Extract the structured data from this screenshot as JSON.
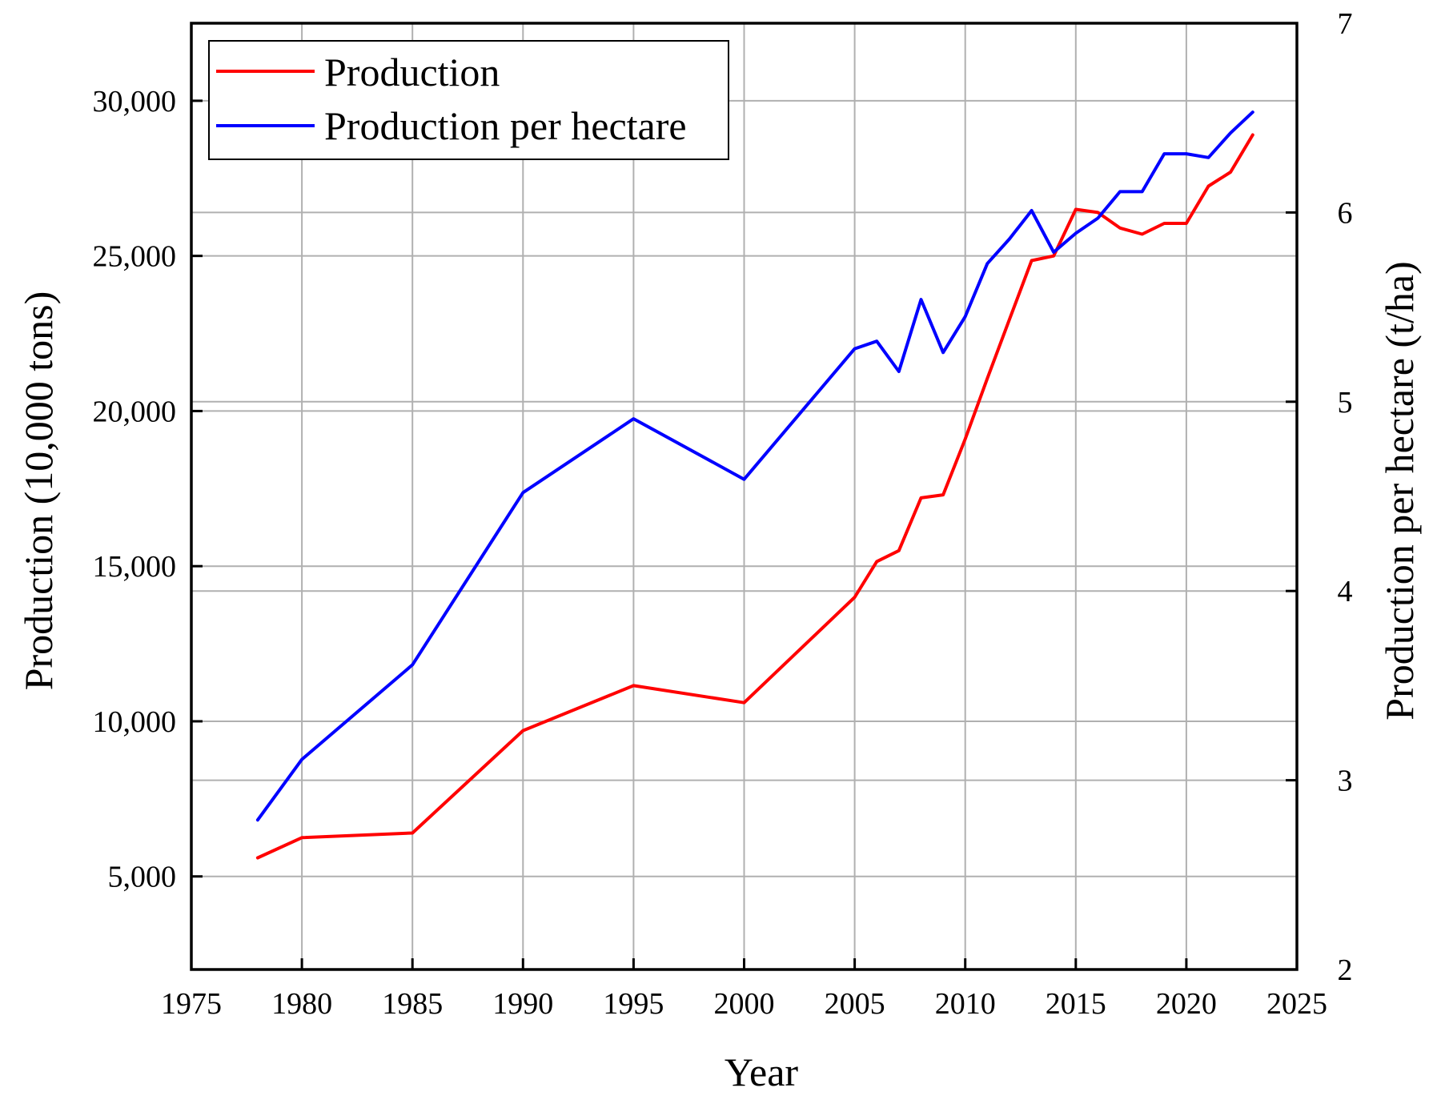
{
  "chart_data": {
    "type": "line",
    "title": "",
    "xlabel": "Year",
    "ylabel": "Production (10,000 tons)",
    "y2label": "Production per hectare (t/ha)",
    "xlim": [
      1975,
      2025
    ],
    "ylim": [
      2000,
      32500
    ],
    "y2lim": [
      2,
      7
    ],
    "xticks": [
      1975,
      1980,
      1985,
      1990,
      1995,
      2000,
      2005,
      2010,
      2015,
      2020,
      2025
    ],
    "yticks": [
      5000,
      10000,
      15000,
      20000,
      25000,
      30000
    ],
    "ytick_labels": [
      "5,000",
      "10,000",
      "15,000",
      "20,000",
      "25,000",
      "30,000"
    ],
    "y2ticks": [
      2,
      3,
      4,
      5,
      6,
      7
    ],
    "grid": true,
    "legend_position": "top-left",
    "series": [
      {
        "name": "Production",
        "axis": "left",
        "color": "#ff0000",
        "x": [
          1978,
          1980,
          1985,
          1990,
          1995,
          2000,
          2005,
          2006,
          2007,
          2008,
          2009,
          2010,
          2011,
          2012,
          2013,
          2014,
          2015,
          2016,
          2017,
          2018,
          2019,
          2020,
          2021,
          2022,
          2023
        ],
        "values": [
          5600,
          6250,
          6400,
          9700,
          11150,
          10600,
          14000,
          15150,
          15500,
          17200,
          17300,
          19100,
          21050,
          22950,
          24850,
          25000,
          26500,
          26400,
          25900,
          25700,
          26050,
          26050,
          27250,
          27700,
          28900
        ]
      },
      {
        "name": "Production per hectare",
        "axis": "right",
        "color": "#0000ff",
        "x": [
          1978,
          1980,
          1985,
          1990,
          1995,
          2000,
          2005,
          2006,
          2007,
          2008,
          2009,
          2010,
          2011,
          2012,
          2013,
          2014,
          2015,
          2016,
          2017,
          2018,
          2019,
          2020,
          2021,
          2022,
          2023
        ],
        "values": [
          2.79,
          3.11,
          3.61,
          4.52,
          4.91,
          4.59,
          5.28,
          5.32,
          5.16,
          5.54,
          5.26,
          5.45,
          5.73,
          5.86,
          6.01,
          5.79,
          5.89,
          5.97,
          6.11,
          6.11,
          6.31,
          6.31,
          6.29,
          6.42,
          6.53
        ]
      }
    ]
  }
}
